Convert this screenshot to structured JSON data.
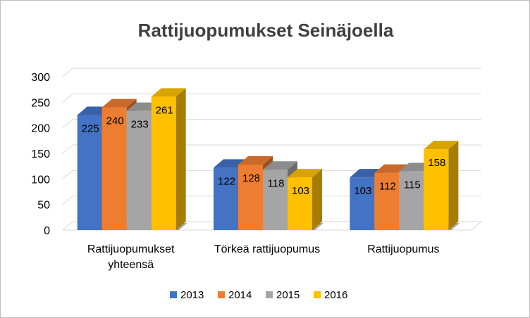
{
  "chart_data": {
    "type": "bar",
    "title": "Rattijuopumukset Seinäjoella",
    "categories": [
      [
        "Rattijuopumukset",
        "yhteensä"
      ],
      [
        "Törkeä rattijuopumus"
      ],
      [
        "Rattijuopumus"
      ]
    ],
    "series": [
      {
        "name": "2013",
        "values": [
          225,
          122,
          103
        ],
        "color": "#4472c4"
      },
      {
        "name": "2014",
        "values": [
          240,
          128,
          112
        ],
        "color": "#ed7d31"
      },
      {
        "name": "2015",
        "values": [
          233,
          118,
          115
        ],
        "color": "#a5a5a5"
      },
      {
        "name": "2016",
        "values": [
          261,
          103,
          158
        ],
        "color": "#ffc000"
      }
    ],
    "y_ticks": [
      0,
      50,
      100,
      150,
      200,
      250,
      300
    ],
    "ylim": [
      0,
      300
    ],
    "grid": true,
    "legend_position": "bottom",
    "style": "3d-clustered-column"
  }
}
